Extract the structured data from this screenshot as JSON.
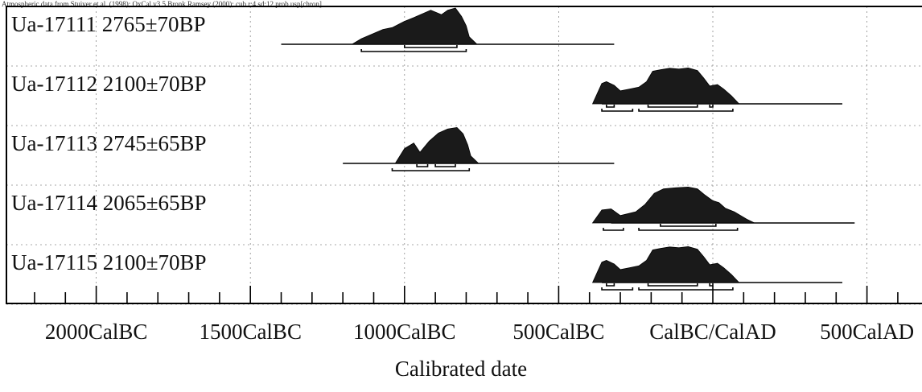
{
  "caption": "Atmospheric data from Stuiver et al. (1998); OxCal v3.5 Bronk Ramsey (2000); cub r:4 sd:12 prob usp[chron]",
  "chart_data": {
    "type": "calibration-plot",
    "title": "",
    "xlabel": "Calibrated date",
    "ylabel": "",
    "xlim": [
      -2400,
      750
    ],
    "grid": true,
    "tick_labels": [
      {
        "value": -2000,
        "label": "2000CalBC"
      },
      {
        "value": -1500,
        "label": "1500CalBC"
      },
      {
        "value": -1000,
        "label": "1000CalBC"
      },
      {
        "value": -500,
        "label": "500CalBC"
      },
      {
        "value": 0,
        "label": "CalBC/CalAD"
      },
      {
        "value": 500,
        "label": "500CalAD"
      }
    ],
    "samples": [
      {
        "lab_id": "Ua-17111",
        "age": "2765±70BP",
        "range": [
          -1400,
          -320
        ],
        "peaks": [
          [
            -1140,
            0.15
          ],
          [
            -1070,
            0.4
          ],
          [
            -1040,
            0.45
          ],
          [
            -1000,
            0.62
          ],
          [
            -970,
            0.72
          ],
          [
            -940,
            0.83
          ],
          [
            -915,
            0.92
          ],
          [
            -880,
            0.8
          ],
          [
            -860,
            0.92
          ],
          [
            -835,
            0.98
          ],
          [
            -815,
            0.75
          ],
          [
            -800,
            0.5
          ],
          [
            -790,
            0.2
          ]
        ],
        "intervals": [
          {
            "level": "68.2%",
            "ranges": [
              [
                -1000,
                -830
              ]
            ]
          },
          {
            "level": "95.4%",
            "ranges": [
              [
                -1140,
                -800
              ]
            ]
          }
        ]
      },
      {
        "lab_id": "Ua-17112",
        "age": "2100±70BP",
        "range": [
          -360,
          420
        ],
        "peaks": [
          [
            -360,
            0.55
          ],
          [
            -345,
            0.6
          ],
          [
            -320,
            0.5
          ],
          [
            -300,
            0.35
          ],
          [
            -270,
            0.4
          ],
          [
            -240,
            0.45
          ],
          [
            -215,
            0.6
          ],
          [
            -195,
            0.88
          ],
          [
            -170,
            0.92
          ],
          [
            -140,
            0.96
          ],
          [
            -110,
            0.94
          ],
          [
            -80,
            0.97
          ],
          [
            -50,
            0.9
          ],
          [
            -30,
            0.7
          ],
          [
            -10,
            0.48
          ],
          [
            15,
            0.52
          ],
          [
            35,
            0.4
          ],
          [
            60,
            0.22
          ]
        ],
        "intervals": [
          {
            "level": "68.2%",
            "ranges": [
              [
                -345,
                -320
              ],
              [
                -210,
                -50
              ],
              [
                -10,
                0
              ]
            ]
          },
          {
            "level": "95.4%",
            "ranges": [
              [
                -360,
                -260
              ],
              [
                -240,
                65
              ]
            ]
          }
        ]
      },
      {
        "lab_id": "Ua-17113",
        "age": "2745±65BP",
        "range": [
          -1200,
          -320
        ],
        "peaks": [
          [
            -1000,
            0.4
          ],
          [
            -970,
            0.55
          ],
          [
            -950,
            0.3
          ],
          [
            -920,
            0.6
          ],
          [
            -890,
            0.82
          ],
          [
            -860,
            0.93
          ],
          [
            -830,
            0.97
          ],
          [
            -810,
            0.8
          ],
          [
            -795,
            0.5
          ],
          [
            -785,
            0.2
          ]
        ],
        "intervals": [
          {
            "level": "68.2%",
            "ranges": [
              [
                -960,
                -925
              ],
              [
                -900,
                -835
              ]
            ]
          },
          {
            "level": "95.4%",
            "ranges": [
              [
                -1040,
                -790
              ]
            ]
          }
        ]
      },
      {
        "lab_id": "Ua-17114",
        "age": "2065±65BP",
        "range": [
          -330,
          460
        ],
        "peaks": [
          [
            -360,
            0.35
          ],
          [
            -330,
            0.38
          ],
          [
            -300,
            0.2
          ],
          [
            -250,
            0.3
          ],
          [
            -220,
            0.5
          ],
          [
            -190,
            0.8
          ],
          [
            -160,
            0.92
          ],
          [
            -120,
            0.95
          ],
          [
            -80,
            0.97
          ],
          [
            -50,
            0.92
          ],
          [
            -25,
            0.75
          ],
          [
            0,
            0.6
          ],
          [
            20,
            0.55
          ],
          [
            40,
            0.4
          ],
          [
            70,
            0.3
          ],
          [
            110,
            0.1
          ]
        ],
        "intervals": [
          {
            "level": "68.2%",
            "ranges": [
              [
                -170,
                10
              ]
            ]
          },
          {
            "level": "95.4%",
            "ranges": [
              [
                -355,
                -290
              ],
              [
                -240,
                80
              ]
            ]
          }
        ]
      },
      {
        "lab_id": "Ua-17115",
        "age": "2100±70BP",
        "range": [
          -360,
          420
        ],
        "peaks": [
          [
            -360,
            0.55
          ],
          [
            -345,
            0.6
          ],
          [
            -320,
            0.5
          ],
          [
            -300,
            0.35
          ],
          [
            -270,
            0.4
          ],
          [
            -240,
            0.45
          ],
          [
            -215,
            0.6
          ],
          [
            -195,
            0.88
          ],
          [
            -170,
            0.92
          ],
          [
            -140,
            0.96
          ],
          [
            -110,
            0.94
          ],
          [
            -80,
            0.97
          ],
          [
            -50,
            0.9
          ],
          [
            -30,
            0.7
          ],
          [
            -10,
            0.48
          ],
          [
            15,
            0.52
          ],
          [
            35,
            0.4
          ],
          [
            60,
            0.22
          ]
        ],
        "intervals": [
          {
            "level": "68.2%",
            "ranges": [
              [
                -345,
                -320
              ],
              [
                -210,
                -50
              ],
              [
                -10,
                0
              ]
            ]
          },
          {
            "level": "95.4%",
            "ranges": [
              [
                -360,
                -260
              ],
              [
                -240,
                65
              ]
            ]
          }
        ]
      }
    ]
  }
}
